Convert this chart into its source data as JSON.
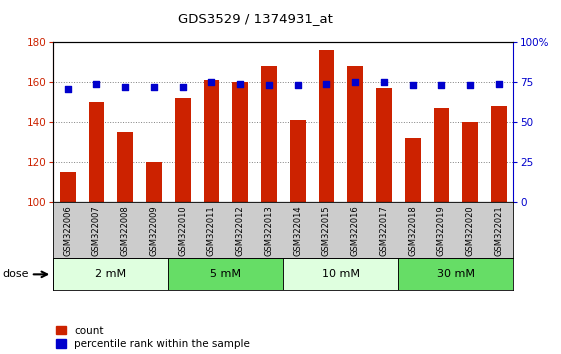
{
  "title": "GDS3529 / 1374931_at",
  "samples": [
    "GSM322006",
    "GSM322007",
    "GSM322008",
    "GSM322009",
    "GSM322010",
    "GSM322011",
    "GSM322012",
    "GSM322013",
    "GSM322014",
    "GSM322015",
    "GSM322016",
    "GSM322017",
    "GSM322018",
    "GSM322019",
    "GSM322020",
    "GSM322021"
  ],
  "counts": [
    115,
    150,
    135,
    120,
    152,
    161,
    160,
    168,
    141,
    176,
    168,
    157,
    132,
    147,
    140,
    148
  ],
  "percentiles": [
    71,
    74,
    72,
    72,
    72,
    75,
    74,
    73,
    73,
    74,
    75,
    75,
    73,
    73,
    73,
    74
  ],
  "dose_groups": [
    {
      "label": "2 mM",
      "start": 0,
      "end": 3,
      "color": "#dfffdf"
    },
    {
      "label": "5 mM",
      "start": 4,
      "end": 7,
      "color": "#66dd66"
    },
    {
      "label": "10 mM",
      "start": 8,
      "end": 11,
      "color": "#dfffdf"
    },
    {
      "label": "30 mM",
      "start": 12,
      "end": 15,
      "color": "#66dd66"
    }
  ],
  "ylim_left": [
    100,
    180
  ],
  "ylim_right": [
    0,
    100
  ],
  "yticks_left": [
    100,
    120,
    140,
    160,
    180
  ],
  "yticks_right": [
    0,
    25,
    50,
    75,
    100
  ],
  "bar_color": "#cc2200",
  "dot_color": "#0000cc",
  "bar_width": 0.55,
  "tick_bg_color": "#cccccc",
  "legend_count_label": "count",
  "legend_pct_label": "percentile rank within the sample",
  "dose_label": "dose"
}
